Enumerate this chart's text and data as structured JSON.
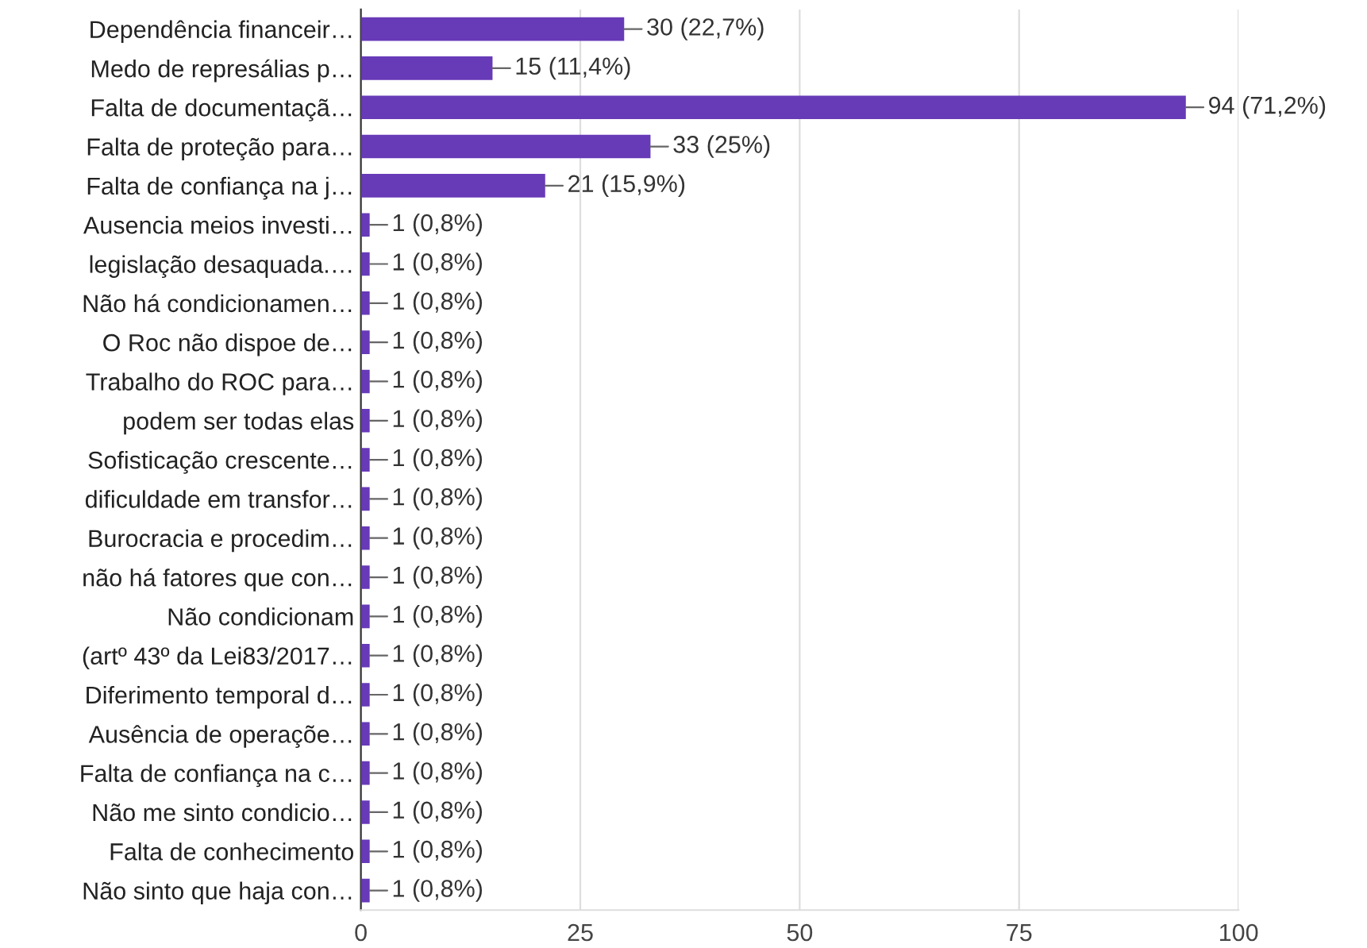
{
  "chart_data": {
    "type": "bar",
    "orientation": "horizontal",
    "color": "#673ab7",
    "categories": [
      "Dependência financeir…",
      "Medo de represálias p…",
      "Falta de documentaçã…",
      "Falta de proteção para…",
      "Falta de confiança na j…",
      "Ausencia meios investi…",
      "legislação desaquada.…",
      "Não há condicionamen…",
      "O Roc não dispoe de…",
      "Trabalho do ROC para…",
      "podem ser todas elas",
      "Sofisticação crescente…",
      "dificuldade em transfor…",
      "Burocracia e procedim…",
      "não há fatores que con…",
      "Não condicionam",
      "(artº 43º da Lei83/2017…",
      "Diferimento temporal d…",
      "Ausência de operaçõe…",
      "Falta de confiança na c…",
      "Não me sinto condicio…",
      "Falta de conhecimento",
      "Não sinto que haja con…"
    ],
    "values": [
      30,
      15,
      94,
      33,
      21,
      1,
      1,
      1,
      1,
      1,
      1,
      1,
      1,
      1,
      1,
      1,
      1,
      1,
      1,
      1,
      1,
      1,
      1
    ],
    "value_labels": [
      "30 (22,7%)",
      "15 (11,4%)",
      "94 (71,2%)",
      "33 (25%)",
      "21 (15,9%)",
      "1 (0,8%)",
      "1 (0,8%)",
      "1 (0,8%)",
      "1 (0,8%)",
      "1 (0,8%)",
      "1 (0,8%)",
      "1 (0,8%)",
      "1 (0,8%)",
      "1 (0,8%)",
      "1 (0,8%)",
      "1 (0,8%)",
      "1 (0,8%)",
      "1 (0,8%)",
      "1 (0,8%)",
      "1 (0,8%)",
      "1 (0,8%)",
      "1 (0,8%)",
      "1 (0,8%)"
    ],
    "xlim": [
      0,
      100
    ],
    "xticks": [
      0,
      25,
      50,
      75,
      100
    ],
    "grid": "x"
  }
}
